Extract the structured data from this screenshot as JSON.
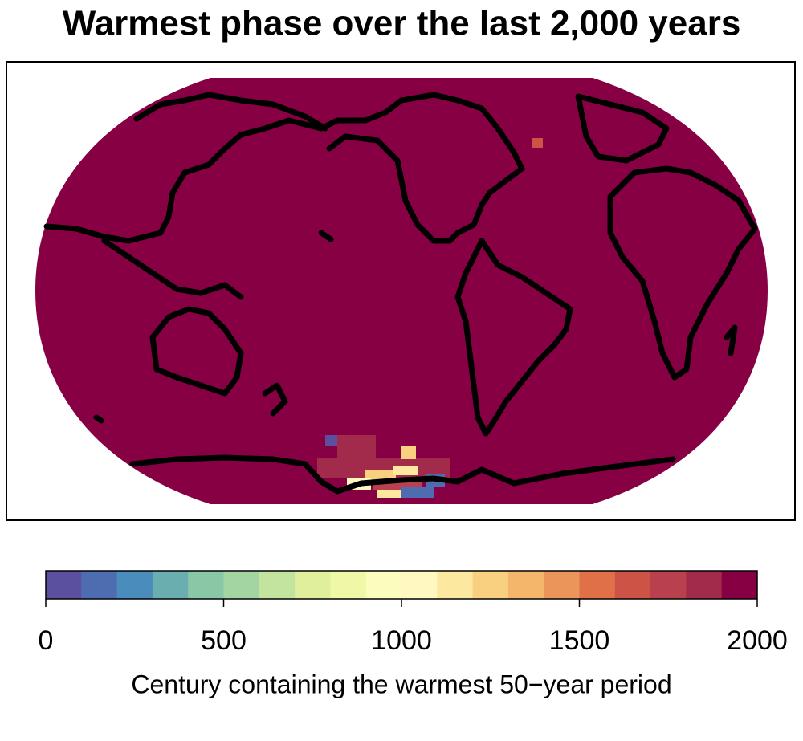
{
  "title": "Warmest phase over the last 2,000 years",
  "colorbar": {
    "lim": [
      0,
      2000
    ],
    "ticks": [
      0,
      500,
      1000,
      1500,
      2000
    ],
    "colors": [
      "#5b50a0",
      "#4e6db1",
      "#4a8cbb",
      "#6aaeb0",
      "#89c7a6",
      "#a3d5a2",
      "#c3e49f",
      "#dfef9b",
      "#f0f7a7",
      "#fbfdbe",
      "#fff9c1",
      "#fde8a0",
      "#f9d07f",
      "#f3b66b",
      "#ec955b",
      "#df7048",
      "#cd5346",
      "#b9404d",
      "#a22a4b",
      "#880044"
    ],
    "label": "Century containing the warmest 50−year period"
  }
}
